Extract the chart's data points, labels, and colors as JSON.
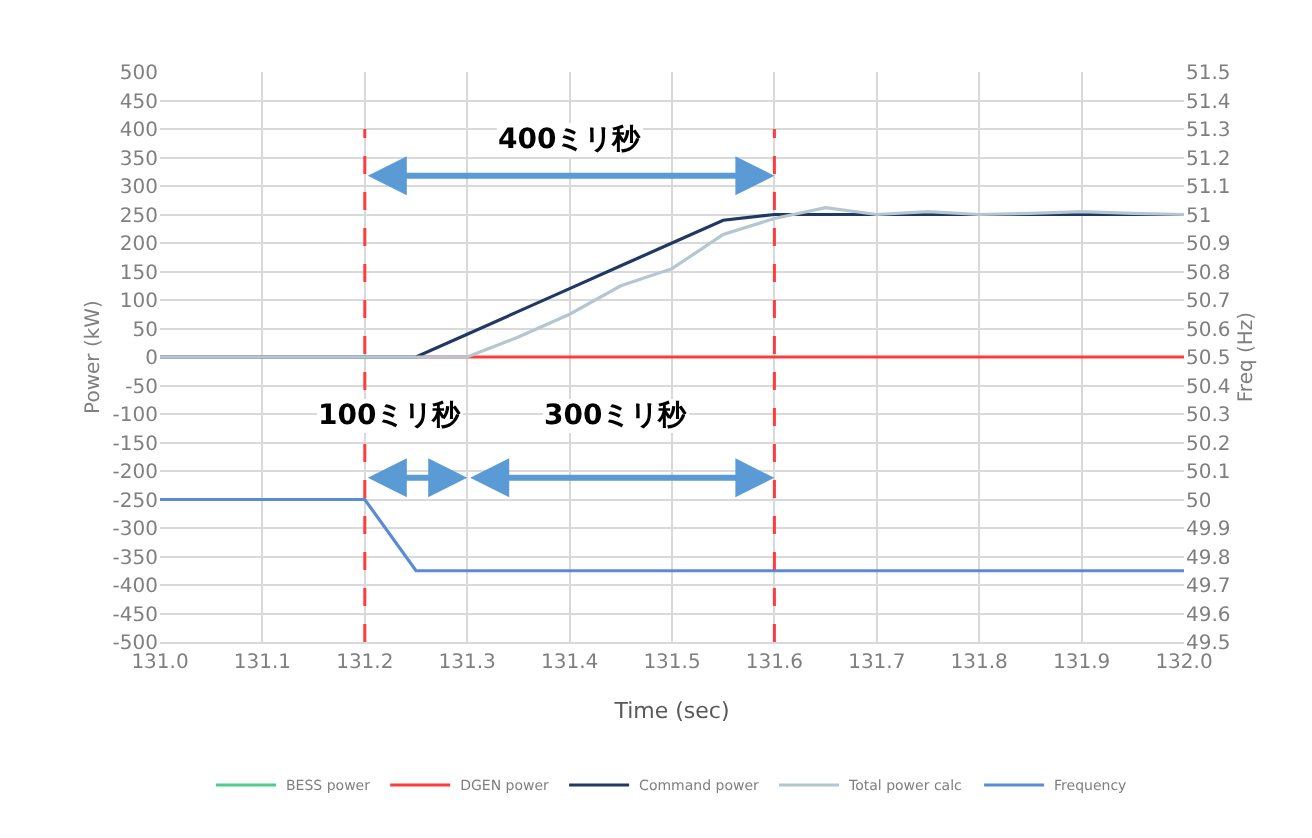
{
  "chart_data": {
    "type": "line",
    "xlabel": "Time (sec)",
    "ylabel": "Power (kW)",
    "y2label": "Freq (Hz)",
    "x": [
      131.0,
      131.05,
      131.1,
      131.15,
      131.2,
      131.25,
      131.3,
      131.35,
      131.4,
      131.45,
      131.5,
      131.55,
      131.6,
      131.65,
      131.7,
      131.75,
      131.8,
      131.85,
      131.9,
      131.95,
      132.0
    ],
    "series": [
      {
        "name": "BESS power",
        "color": "#4ccf8a",
        "values": [
          null,
          null,
          null,
          null,
          null,
          null,
          null,
          null,
          null,
          null,
          null,
          null,
          null,
          null,
          null,
          null,
          null,
          null,
          null,
          null,
          null
        ]
      },
      {
        "name": "DGEN power",
        "color": "#ff3b3b",
        "values": [
          null,
          null,
          null,
          null,
          null,
          0,
          0,
          0,
          0,
          0,
          0,
          0,
          0,
          0,
          0,
          0,
          0,
          0,
          0,
          0,
          0
        ]
      },
      {
        "name": "Command power",
        "color": "#203864",
        "values": [
          0,
          0,
          0,
          0,
          0,
          0,
          40,
          80,
          120,
          160,
          200,
          240,
          250,
          250,
          250,
          250,
          250,
          250,
          250,
          250,
          250
        ]
      },
      {
        "name": "Total power calc",
        "color": "#b4c7d0",
        "values": [
          0,
          0,
          0,
          0,
          0,
          0,
          0,
          35,
          75,
          125,
          155,
          215,
          243,
          262,
          250,
          255,
          250,
          252,
          255,
          252,
          250
        ]
      },
      {
        "name": "Frequency",
        "color": "#5b8bd6",
        "axis": "y2",
        "values": [
          50,
          50,
          50,
          50,
          50,
          49.75,
          49.75,
          49.75,
          49.75,
          49.75,
          49.75,
          49.75,
          49.75,
          49.75,
          49.75,
          49.75,
          49.75,
          49.75,
          49.75,
          49.75,
          49.75
        ]
      }
    ],
    "xlim": [
      131.0,
      132.0
    ],
    "xticks": [
      {
        "value": 131.0,
        "label": "131.0"
      },
      131.1,
      131.2,
      131.3,
      131.4,
      131.5,
      131.6,
      131.7,
      131.8,
      131.9,
      {
        "value": 132.0,
        "label": "132.0"
      }
    ],
    "ylim": [
      -500,
      500
    ],
    "yticks": [
      -500,
      -450,
      -400,
      -350,
      -300,
      -250,
      -200,
      -150,
      -100,
      -50,
      0,
      50,
      100,
      150,
      200,
      250,
      300,
      350,
      400,
      450,
      500
    ],
    "y2lim": [
      49.5,
      51.5
    ],
    "y2ticks": [
      49.5,
      49.6,
      49.7,
      49.8,
      49.9,
      50,
      50.1,
      50.2,
      50.3,
      50.4,
      50.5,
      50.6,
      50.7,
      50.8,
      50.9,
      51,
      51.1,
      51.2,
      51.3,
      51.4,
      51.5
    ],
    "ref_lines": [
      {
        "axis": "x",
        "value": 131.2,
        "color": "#ff3b3b",
        "line_style": "dashed"
      },
      {
        "axis": "x",
        "value": 131.6,
        "color": "#ff3b3b",
        "line_style": "dashed"
      }
    ],
    "annotations": [
      "400ミリ秒",
      "100ミリ秒",
      "300ミリ秒"
    ],
    "grid": true,
    "legend": "bottom",
    "marker": "none",
    "line_style": "solid"
  }
}
